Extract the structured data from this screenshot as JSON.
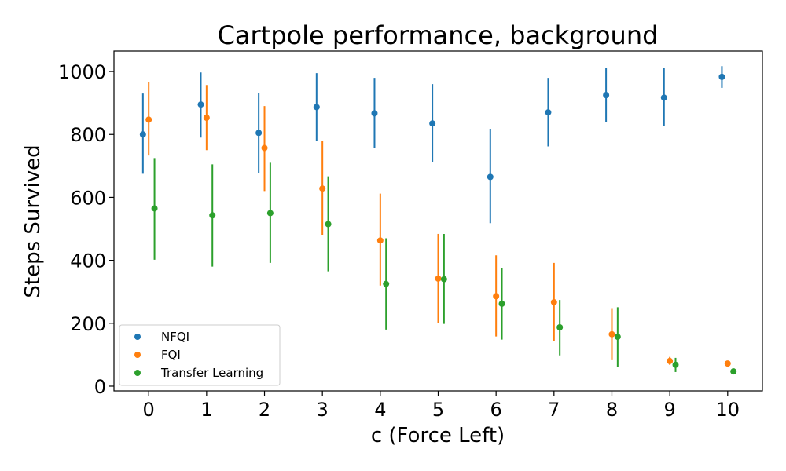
{
  "chart_data": {
    "type": "scatter",
    "title": "Cartpole performance, background",
    "xlabel": "c (Force Left)",
    "ylabel": "Steps Survived",
    "xlim": [
      -0.6,
      10.6
    ],
    "ylim": [
      -15,
      1065
    ],
    "x_ticks": [
      "0",
      "1",
      "2",
      "3",
      "4",
      "5",
      "6",
      "7",
      "8",
      "9",
      "10"
    ],
    "y_ticks": [
      "0",
      "200",
      "400",
      "600",
      "800",
      "1000"
    ],
    "legend_position": "lower-left",
    "grid": false,
    "series": [
      {
        "name": "NFQI",
        "color": "#1f77b4",
        "offset": -0.1,
        "x": [
          0,
          1,
          2,
          3,
          4,
          5,
          6,
          7,
          8,
          9,
          10
        ],
        "y": [
          800,
          895,
          805,
          887,
          867,
          835,
          665,
          870,
          925,
          917,
          983
        ],
        "err_low": [
          675,
          790,
          677,
          780,
          758,
          712,
          518,
          762,
          838,
          826,
          948
        ],
        "err_high": [
          930,
          997,
          932,
          995,
          980,
          960,
          818,
          980,
          1010,
          1010,
          1017
        ]
      },
      {
        "name": "FQI",
        "color": "#ff7f0e",
        "offset": 0,
        "x": [
          0,
          1,
          2,
          3,
          4,
          5,
          6,
          7,
          8,
          9,
          10
        ],
        "y": [
          847,
          853,
          757,
          628,
          463,
          342,
          286,
          267,
          165,
          80,
          72
        ],
        "err_low": [
          733,
          750,
          620,
          480,
          320,
          202,
          158,
          143,
          85,
          68,
          65
        ],
        "err_high": [
          967,
          957,
          890,
          780,
          612,
          484,
          416,
          392,
          248,
          93,
          80
        ]
      },
      {
        "name": "Transfer Learning",
        "color": "#2ca02c",
        "offset": 0.1,
        "x": [
          0,
          1,
          2,
          3,
          4,
          5,
          6,
          7,
          8,
          9,
          10
        ],
        "y": [
          565,
          543,
          550,
          515,
          325,
          340,
          262,
          187,
          157,
          68,
          47
        ],
        "err_low": [
          402,
          380,
          392,
          365,
          180,
          198,
          148,
          98,
          62,
          45,
          42
        ],
        "err_high": [
          725,
          705,
          710,
          667,
          470,
          484,
          374,
          274,
          251,
          90,
          53
        ]
      }
    ]
  }
}
